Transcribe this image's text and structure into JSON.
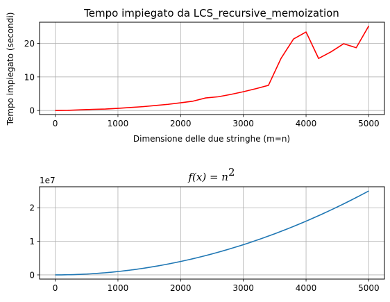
{
  "chart_data": [
    {
      "type": "line",
      "title": "Tempo impiegato da LCS_recursive_memoization",
      "xlabel": "Dimensione delle due stringhe (m=n)",
      "ylabel": "Tempo impiegato (secondi)",
      "xlim": [
        -250,
        5250
      ],
      "ylim": [
        -1.2,
        26.3
      ],
      "xticks": [
        "0",
        "1000",
        "2000",
        "3000",
        "4000",
        "5000"
      ],
      "yticks": [
        "0",
        "10",
        "20"
      ],
      "grid": true,
      "color": "#ff0000",
      "series": [
        {
          "x": [
            0,
            200,
            400,
            600,
            800,
            1000,
            1200,
            1400,
            1600,
            1800,
            2000,
            2200,
            2400,
            2600,
            2800,
            3000,
            3200,
            3400,
            3600,
            3800,
            4000,
            4200,
            4400,
            4600,
            4800,
            5000
          ],
          "values": [
            0.0,
            0.05,
            0.2,
            0.35,
            0.45,
            0.65,
            0.9,
            1.15,
            1.5,
            1.85,
            2.3,
            2.8,
            3.75,
            4.1,
            4.8,
            5.6,
            6.5,
            7.5,
            15.5,
            21.3,
            23.4,
            15.5,
            17.5,
            19.9,
            18.7,
            25.2
          ]
        }
      ]
    },
    {
      "type": "line",
      "title_prefix": "f(x) = n",
      "title_sup": "2",
      "offset_text": "1e7",
      "xlim": [
        -250,
        5250
      ],
      "ylim": [
        -1250000,
        26250000
      ],
      "xticks": [
        "0",
        "1000",
        "2000",
        "3000",
        "4000",
        "5000"
      ],
      "yticks": [
        "0",
        "1",
        "2"
      ],
      "grid": true,
      "color": "#1f77b4",
      "function": "x^2",
      "domain": [
        0,
        5000
      ]
    }
  ]
}
